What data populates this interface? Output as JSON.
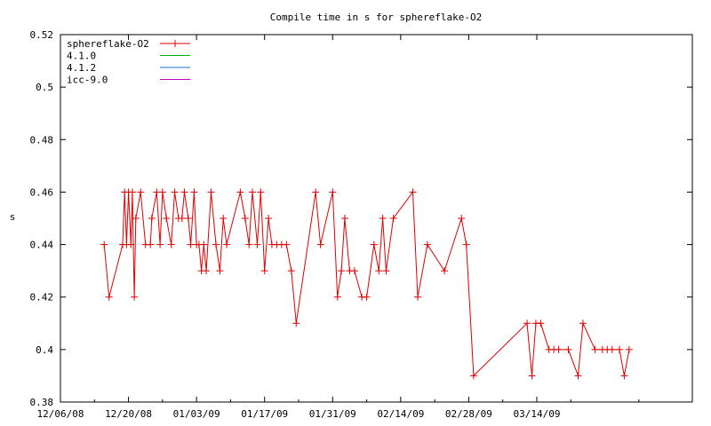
{
  "chart_data": {
    "type": "line",
    "title": "Compile time in s for sphereflake-O2",
    "xlabel": "",
    "ylabel": "s",
    "ylim": [
      0.38,
      0.52
    ],
    "yticks": [
      "0.38",
      "0.4",
      "0.42",
      "0.44",
      "0.46",
      "0.48",
      "0.5",
      "0.52"
    ],
    "xlim": [
      0,
      130
    ],
    "xticks": [
      {
        "label": "12/06/08",
        "day": 0
      },
      {
        "label": "12/20/08",
        "day": 14
      },
      {
        "label": "01/03/09",
        "day": 28
      },
      {
        "label": "01/17/09",
        "day": 42
      },
      {
        "label": "01/31/09",
        "day": 56
      },
      {
        "label": "02/14/09",
        "day": 70
      },
      {
        "label": "02/28/09",
        "day": 84
      },
      {
        "label": "03/14/09",
        "day": 98
      }
    ],
    "grid": false,
    "legend_position": "top-left",
    "series": [
      {
        "name": "sphereflake-O2",
        "color": "#e00000",
        "markers": true,
        "points": [
          [
            9,
            0.44
          ],
          [
            10,
            0.42
          ],
          [
            12.8,
            0.44
          ],
          [
            13.2,
            0.46
          ],
          [
            13.6,
            0.44
          ],
          [
            14,
            0.46
          ],
          [
            14.5,
            0.44
          ],
          [
            14.8,
            0.46
          ],
          [
            15.2,
            0.42
          ],
          [
            15.5,
            0.45
          ],
          [
            16.5,
            0.46
          ],
          [
            17.5,
            0.44
          ],
          [
            18.5,
            0.44
          ],
          [
            18.8,
            0.45
          ],
          [
            19.8,
            0.46
          ],
          [
            20.5,
            0.44
          ],
          [
            21,
            0.46
          ],
          [
            21.8,
            0.45
          ],
          [
            22.8,
            0.44
          ],
          [
            23.5,
            0.46
          ],
          [
            24.3,
            0.45
          ],
          [
            25,
            0.45
          ],
          [
            25.5,
            0.46
          ],
          [
            26.3,
            0.45
          ],
          [
            26.8,
            0.44
          ],
          [
            27.5,
            0.46
          ],
          [
            28,
            0.44
          ],
          [
            28.5,
            0.44
          ],
          [
            29,
            0.43
          ],
          [
            29.5,
            0.44
          ],
          [
            30,
            0.43
          ],
          [
            31,
            0.46
          ],
          [
            32,
            0.44
          ],
          [
            32.8,
            0.43
          ],
          [
            33.5,
            0.45
          ],
          [
            34.2,
            0.44
          ],
          [
            37,
            0.46
          ],
          [
            38,
            0.45
          ],
          [
            38.8,
            0.44
          ],
          [
            39.5,
            0.46
          ],
          [
            40.5,
            0.44
          ],
          [
            41.2,
            0.46
          ],
          [
            42,
            0.43
          ],
          [
            42.8,
            0.45
          ],
          [
            43.5,
            0.44
          ],
          [
            44.5,
            0.44
          ],
          [
            45.5,
            0.44
          ],
          [
            46.5,
            0.44
          ],
          [
            47.5,
            0.43
          ],
          [
            48.5,
            0.41
          ],
          [
            52.5,
            0.46
          ],
          [
            53.5,
            0.44
          ],
          [
            56,
            0.46
          ],
          [
            57,
            0.42
          ],
          [
            57.8,
            0.43
          ],
          [
            58.5,
            0.45
          ],
          [
            59.5,
            0.43
          ],
          [
            60.5,
            0.43
          ],
          [
            62,
            0.42
          ],
          [
            63,
            0.42
          ],
          [
            64.5,
            0.44
          ],
          [
            65.5,
            0.43
          ],
          [
            66.3,
            0.45
          ],
          [
            67,
            0.43
          ],
          [
            68.5,
            0.45
          ],
          [
            72.5,
            0.46
          ],
          [
            73.5,
            0.42
          ],
          [
            75.5,
            0.44
          ],
          [
            79,
            0.43
          ],
          [
            82.5,
            0.45
          ],
          [
            83.5,
            0.44
          ],
          [
            85,
            0.39
          ],
          [
            96,
            0.41
          ],
          [
            97,
            0.39
          ],
          [
            97.8,
            0.41
          ],
          [
            98.8,
            0.41
          ],
          [
            100.5,
            0.4
          ],
          [
            101.5,
            0.4
          ],
          [
            102.5,
            0.4
          ],
          [
            104.5,
            0.4
          ],
          [
            106.5,
            0.39
          ],
          [
            107.5,
            0.41
          ],
          [
            110,
            0.4
          ],
          [
            111.5,
            0.4
          ],
          [
            112.5,
            0.4
          ],
          [
            113.5,
            0.4
          ],
          [
            115,
            0.4
          ],
          [
            116,
            0.39
          ],
          [
            117,
            0.4
          ]
        ]
      },
      {
        "name": "4.1.0",
        "color": "#00b000",
        "markers": false,
        "points": []
      },
      {
        "name": "4.1.2",
        "color": "#1a6fd6",
        "markers": false,
        "points": []
      },
      {
        "name": "icc-9.0",
        "color": "#c000c0",
        "markers": false,
        "points": []
      }
    ]
  }
}
